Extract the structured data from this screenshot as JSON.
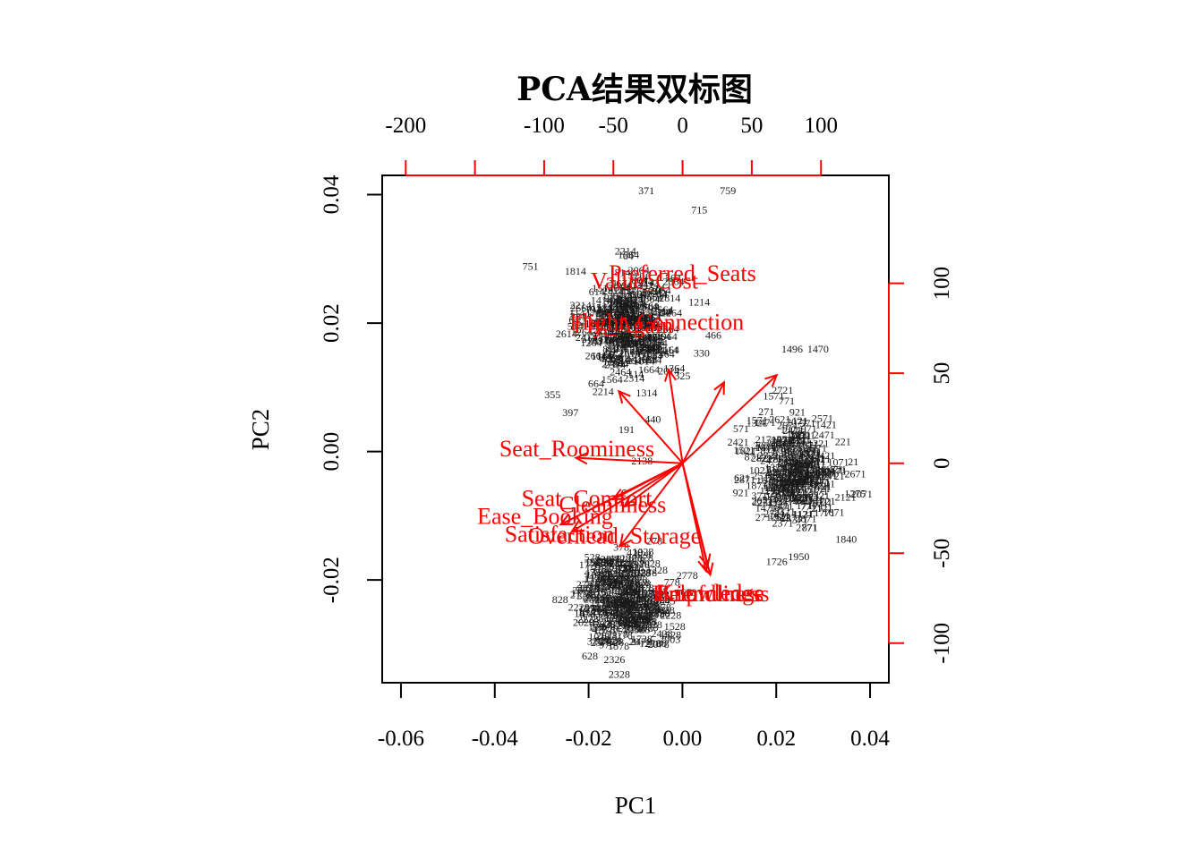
{
  "chart_data": {
    "type": "scatter",
    "title": "PCA结果双标图",
    "xlabel": "PC1",
    "ylabel": "PC2",
    "xlim": [
      -0.064,
      0.044
    ],
    "ylim": [
      -0.036,
      0.043
    ],
    "x_ticks": [
      -0.06,
      -0.04,
      -0.02,
      0.0,
      0.02,
      0.04
    ],
    "x_tick_labels": [
      "-0.06",
      "-0.04",
      "-0.02",
      "0.00",
      "0.02",
      "0.04"
    ],
    "y_ticks": [
      -0.02,
      0.0,
      0.02,
      0.04
    ],
    "y_tick_labels": [
      "-0.02",
      "0.00",
      "0.02",
      "0.04"
    ],
    "loading_axis": {
      "color": "#ff0000",
      "xlim": [
        -217,
        149
      ],
      "ylim": [
        -122,
        160
      ],
      "top_ticks": [
        -200,
        -150,
        -100,
        -50,
        0,
        50,
        100
      ],
      "top_tick_labels": [
        "-200",
        "",
        "-100",
        "-50",
        "0",
        "50",
        "100"
      ],
      "right_ticks": [
        -100,
        -50,
        0,
        50,
        100
      ],
      "right_tick_labels": [
        "-100",
        "-50",
        "0",
        "50",
        "100"
      ]
    },
    "clusters": [
      {
        "cx": -0.0115,
        "cy": 0.0195,
        "sx": 0.0085,
        "sy": 0.0075,
        "n": 260
      },
      {
        "cx": 0.0245,
        "cy": -0.0035,
        "sx": 0.0085,
        "sy": 0.0075,
        "n": 260
      },
      {
        "cx": -0.0125,
        "cy": -0.0235,
        "sx": 0.0085,
        "sy": 0.0065,
        "n": 260
      }
    ],
    "observation_labels": [
      {
        "label": "371",
        "x": -0.0077,
        "y": 0.0401
      },
      {
        "label": "759",
        "x": 0.0097,
        "y": 0.0401
      },
      {
        "label": "715",
        "x": 0.0036,
        "y": 0.0371
      },
      {
        "label": "751",
        "x": -0.0324,
        "y": 0.0283
      },
      {
        "label": "355",
        "x": -0.0277,
        "y": 0.0083
      },
      {
        "label": "397",
        "x": -0.0239,
        "y": 0.0055
      },
      {
        "label": "191",
        "x": -0.0119,
        "y": 0.0029
      },
      {
        "label": "440",
        "x": -0.0063,
        "y": 0.0045
      },
      {
        "label": "2138",
        "x": -0.0086,
        "y": -0.002
      },
      {
        "label": "466",
        "x": 0.0066,
        "y": 0.0176
      },
      {
        "label": "330",
        "x": 0.0041,
        "y": 0.0148
      },
      {
        "label": "325",
        "x": 0.0,
        "y": 0.0112
      },
      {
        "label": "1496",
        "x": 0.0234,
        "y": 0.0154
      },
      {
        "label": "1470",
        "x": 0.0289,
        "y": 0.0154
      },
      {
        "label": "1840",
        "x": 0.0349,
        "y": -0.0142
      },
      {
        "label": "1726",
        "x": 0.0201,
        "y": -0.0177
      },
      {
        "label": "1950",
        "x": 0.0248,
        "y": -0.0169
      },
      {
        "label": "1275",
        "x": 0.0368,
        "y": -0.0071
      },
      {
        "label": "2903",
        "x": -0.0027,
        "y": -0.0298
      },
      {
        "label": "2168",
        "x": -0.0056,
        "y": -0.0304
      },
      {
        "label": "2326",
        "x": -0.0145,
        "y": -0.0329
      },
      {
        "label": "4845",
        "x": -0.0038,
        "y": -0.0238
      }
    ],
    "arrows": [
      {
        "name": "Preferred_Seats",
        "x": 68,
        "y": 49,
        "label_x": 0.0,
        "label_y": 0.0278
      },
      {
        "name": "Value_Cost",
        "x": 30,
        "y": 45,
        "label_x": -0.0081,
        "label_y": 0.0266
      },
      {
        "name": "Flight_Connection",
        "x": -10,
        "y": 52,
        "label_x": -0.0055,
        "label_y": 0.0202
      },
      {
        "name": "Fly_Again",
        "x": -46,
        "y": 40,
        "label_x": -0.0126,
        "label_y": 0.0197
      },
      {
        "name": "Seat_Roominess",
        "x": -77,
        "y": 3,
        "label_x": -0.0225,
        "label_y": 0.0005
      },
      {
        "name": "Seat_Comfort",
        "x": -50,
        "y": -20,
        "label_x": -0.0204,
        "label_y": -0.0072
      },
      {
        "name": "Cleanliness",
        "x": -42,
        "y": -24,
        "label_x": -0.0149,
        "label_y": -0.0082
      },
      {
        "name": "Ease_Booking",
        "x": -88,
        "y": -34,
        "label_x": -0.0293,
        "label_y": -0.01
      },
      {
        "name": "Satisfaction",
        "x": -80,
        "y": -38,
        "label_x": -0.0262,
        "label_y": -0.0128
      },
      {
        "name": "Overhead_Storage",
        "x": -45,
        "y": -46,
        "label_x": -0.0145,
        "label_y": -0.0131
      },
      {
        "name": "Friendliness",
        "x": 20,
        "y": -62,
        "label_x": 0.0064,
        "label_y": -0.0221
      },
      {
        "name": "Helpfulness",
        "x": 17,
        "y": -60,
        "label_x": 0.0055,
        "label_y": -0.0221
      },
      {
        "name": "Knowledge",
        "x": 18,
        "y": -57,
        "label_x": 0.006,
        "label_y": -0.0219
      }
    ],
    "series": [
      {
        "name": "",
        "color": "#000000"
      },
      {
        "name": "",
        "color": "#ff0000"
      }
    ],
    "grid": false,
    "legend": "none"
  }
}
